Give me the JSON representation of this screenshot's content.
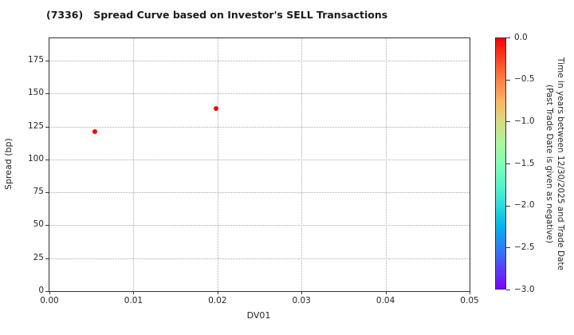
{
  "title": "(7336)   Spread Curve based on Investor's SELL Transactions",
  "chart_data": {
    "type": "scatter",
    "title": "(7336)   Spread Curve based on Investor's SELL Transactions",
    "xlabel": "DV01",
    "ylabel": "Spread (bp)",
    "xlim": [
      0.0,
      0.05
    ],
    "ylim": [
      0,
      192
    ],
    "grid": true,
    "x_ticks": [
      0.0,
      0.01,
      0.02,
      0.03,
      0.04,
      0.05
    ],
    "x_tick_labels": [
      "0.00",
      "0.01",
      "0.02",
      "0.03",
      "0.04",
      "0.05"
    ],
    "y_ticks": [
      0,
      25,
      50,
      75,
      100,
      125,
      150,
      175
    ],
    "points": [
      {
        "x": 0.0054,
        "y": 121,
        "time_years": 0.0,
        "color": "#ff0000"
      },
      {
        "x": 0.0198,
        "y": 139,
        "time_years": 0.0,
        "color": "#ff0000"
      }
    ],
    "colorbar": {
      "label_line1": "Time in years between 12/30/2025 and Trade Date",
      "label_line2": "(Past Trade Date is given as negative)",
      "max": 0.0,
      "min": -3.0,
      "tick_labels": [
        "0.0",
        "−0.5",
        "−1.0",
        "−1.5",
        "−2.0",
        "−2.5",
        "−3.0"
      ],
      "colormap": "rainbow",
      "gradient_stops": [
        "#ff0000",
        "#ff4221",
        "#ff8042",
        "#ffb462",
        "#d4dd80",
        "#aaf69b",
        "#80ffb4",
        "#55f6ca",
        "#2bdddd",
        "#00b4ec",
        "#2b80f6",
        "#5542fd",
        "#8000ff"
      ]
    }
  }
}
